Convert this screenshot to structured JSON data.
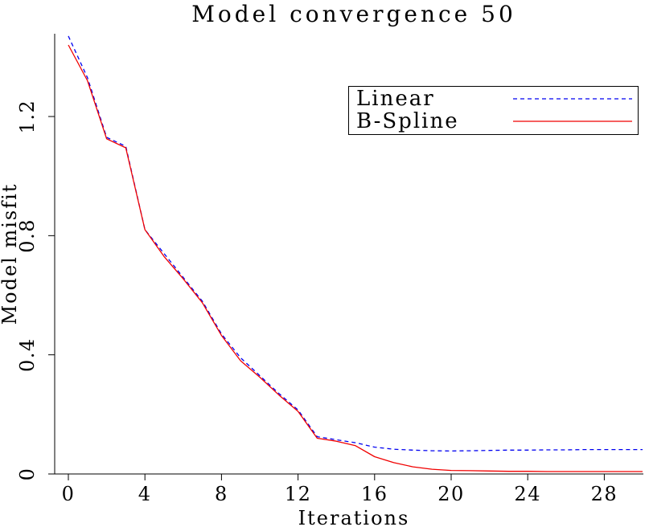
{
  "page": {
    "background": "#ffffff"
  },
  "chart_data": {
    "type": "line",
    "title": "Model convergence 50",
    "xlabel": "Iterations",
    "ylabel": "Model misfit",
    "xlim": [
      0,
      30
    ],
    "ylim": [
      0,
      1.47
    ],
    "xticks": [
      0,
      4,
      8,
      12,
      16,
      20,
      24,
      28
    ],
    "yticks": [
      0,
      0.4,
      0.8,
      1.2
    ],
    "ytick_labels": [
      "0",
      "0.4",
      "0.8",
      "1.2"
    ],
    "grid": false,
    "legend_position": "top-right",
    "x": [
      0,
      1,
      2,
      3,
      4,
      5,
      6,
      7,
      8,
      9,
      10,
      11,
      12,
      13,
      14,
      15,
      16,
      17,
      18,
      19,
      20,
      21,
      22,
      23,
      24,
      25,
      26,
      27,
      28,
      29,
      30
    ],
    "series": [
      {
        "name": "Linear",
        "color": "#0000f0",
        "dash": "dashed",
        "values": [
          1.47,
          1.33,
          1.13,
          1.1,
          0.82,
          0.74,
          0.66,
          0.58,
          0.47,
          0.39,
          0.33,
          0.27,
          0.215,
          0.125,
          0.115,
          0.105,
          0.09,
          0.083,
          0.08,
          0.078,
          0.077,
          0.078,
          0.079,
          0.08,
          0.08,
          0.081,
          0.081,
          0.082,
          0.082,
          0.082,
          0.082
        ]
      },
      {
        "name": "B-Spline",
        "color": "#f00000",
        "dash": "solid",
        "values": [
          1.44,
          1.32,
          1.125,
          1.095,
          0.82,
          0.73,
          0.655,
          0.575,
          0.465,
          0.38,
          0.325,
          0.265,
          0.21,
          0.12,
          0.11,
          0.095,
          0.058,
          0.038,
          0.024,
          0.016,
          0.012,
          0.011,
          0.01,
          0.009,
          0.009,
          0.008,
          0.008,
          0.008,
          0.008,
          0.008,
          0.008
        ]
      }
    ]
  }
}
